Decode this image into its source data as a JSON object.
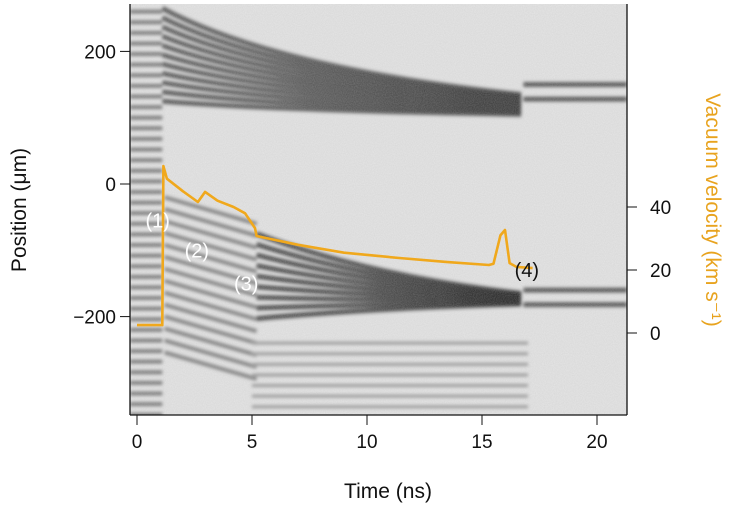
{
  "chart_data": {
    "type": "line",
    "xlabel": "Time (ns)",
    "ylabel": "Position (μm)",
    "y2label": "Vacuum velocity (km s⁻¹)",
    "xlim": [
      -0.3,
      21.3
    ],
    "ylim": [
      -350,
      270
    ],
    "y2lim": [
      -25,
      105
    ],
    "xticks": [
      "0",
      "5",
      "10",
      "15",
      "20"
    ],
    "yticks": [
      "200",
      "0",
      "−200"
    ],
    "y2ticks": [
      "0",
      "20",
      "40"
    ],
    "background": "grayscale streaked image",
    "line_color": "#F0A81C",
    "series": [
      {
        "axis": "right",
        "x": [
          0,
          1.1,
          1.15,
          1.3,
          2.0,
          2.65,
          2.96,
          3.5,
          4.2,
          4.7,
          5.13,
          5.2,
          7,
          9,
          11.4,
          13.5,
          15.3,
          15.5,
          15.8,
          16.0,
          16.2,
          16.5,
          17.2
        ],
        "y": [
          2.5,
          2.5,
          53,
          49,
          45,
          41.6,
          44.8,
          42,
          40,
          38,
          33.3,
          30.8,
          28,
          25.5,
          23.8,
          22.5,
          21.6,
          22,
          31,
          32.7,
          22.2,
          21,
          20.6
        ]
      }
    ],
    "annotations": [
      {
        "text": "(1)",
        "x": 0.9,
        "y": -55
      },
      {
        "text": "(2)",
        "x": 2.6,
        "y": -100
      },
      {
        "text": "(3)",
        "x": 4.75,
        "y": -150
      },
      {
        "text": "(4)",
        "x": 16.95,
        "y": -130
      }
    ]
  }
}
